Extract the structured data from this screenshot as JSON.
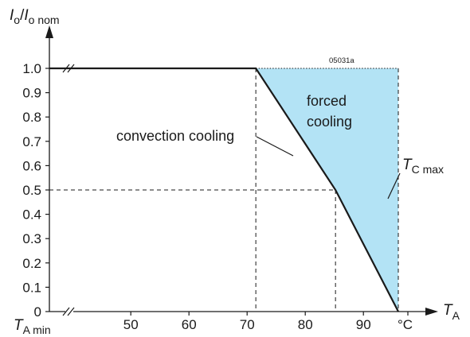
{
  "chart_data": {
    "type": "line",
    "title": "",
    "figure_code": "05031a",
    "y_axis": {
      "label_main": "I",
      "label_main_sub": "o",
      "label_sep": "/",
      "label_den": "I",
      "label_den_sub": "o nom",
      "range": [
        0,
        1.0
      ],
      "ticks": [
        {
          "v": 0,
          "label": "0"
        },
        {
          "v": 0.1,
          "label": "0.1"
        },
        {
          "v": 0.2,
          "label": "0.2"
        },
        {
          "v": 0.3,
          "label": "0.3"
        },
        {
          "v": 0.4,
          "label": "0.4"
        },
        {
          "v": 0.5,
          "label": "0.5"
        },
        {
          "v": 0.6,
          "label": "0.6"
        },
        {
          "v": 0.7,
          "label": "0.7"
        },
        {
          "v": 0.8,
          "label": "0.8"
        },
        {
          "v": 0.9,
          "label": "0.9"
        },
        {
          "v": 1.0,
          "label": "1.0"
        }
      ]
    },
    "x_axis": {
      "label_main": "T",
      "label_sub": "A",
      "unit": "°C",
      "min_label_main": "T",
      "min_label_sub": "A min",
      "range": [
        36,
        100
      ],
      "ticks": [
        {
          "v": 50,
          "label": "50"
        },
        {
          "v": 60,
          "label": "60"
        },
        {
          "v": 70,
          "label": "70"
        },
        {
          "v": 80,
          "label": "80"
        },
        {
          "v": 90,
          "label": "90"
        }
      ]
    },
    "series": [
      {
        "name": "convection cooling",
        "points": [
          [
            36,
            1.0
          ],
          [
            71.5,
            1.0
          ],
          [
            85.2,
            0.5
          ],
          [
            96,
            0
          ]
        ]
      }
    ],
    "forced_cooling_region": {
      "label_line1": "forced",
      "label_line2": "cooling",
      "fill_color": "#b3e3f5",
      "polygon": [
        [
          71.5,
          1.0
        ],
        [
          96,
          1.0
        ],
        [
          96,
          0
        ],
        [
          85.2,
          0.5
        ]
      ]
    },
    "tc_max": {
      "x": 96,
      "label_main": "T",
      "label_sub": "C max"
    },
    "reference_lines": {
      "x_at_full": 71.5,
      "x_at_half": 85.2,
      "y_half": 0.5
    },
    "colors": {
      "line": "#1a1a1a",
      "fill": "#b3e3f5",
      "grid": "#1a1a1a"
    }
  }
}
